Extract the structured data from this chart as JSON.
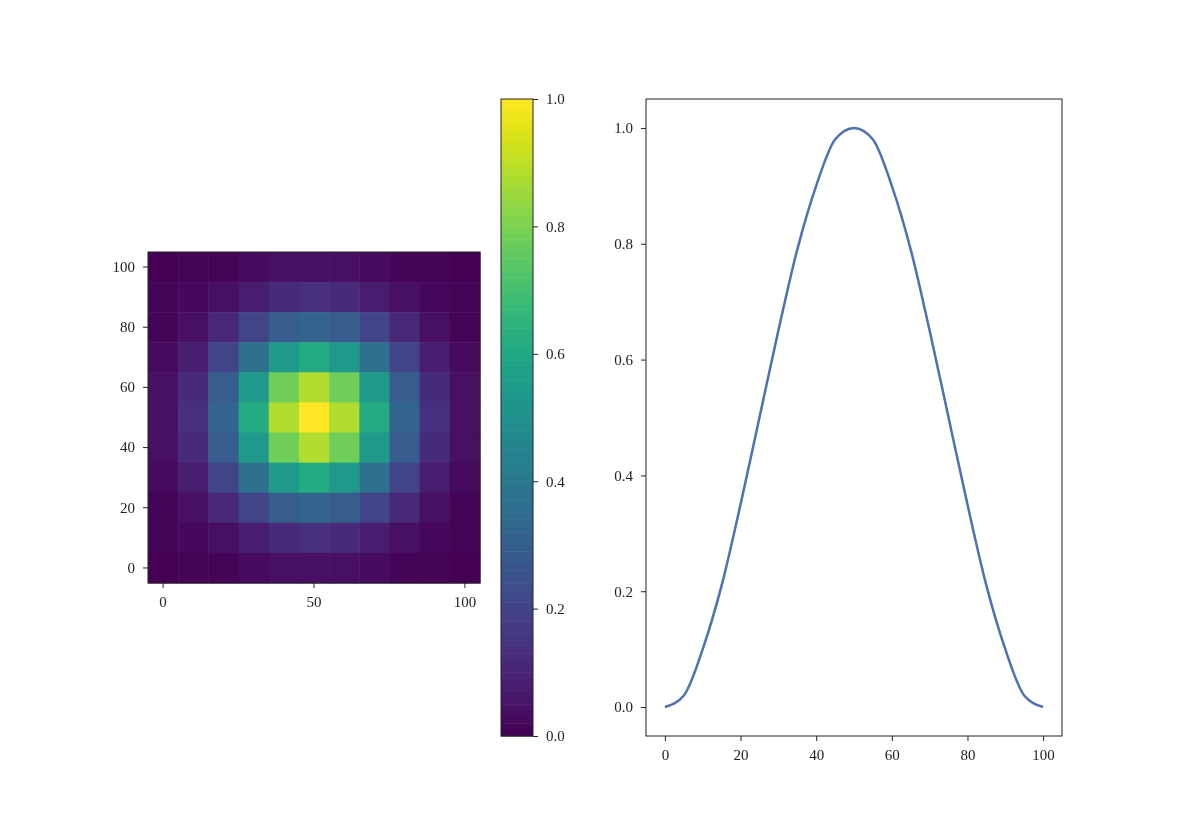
{
  "chart_data": [
    {
      "type": "heatmap",
      "categories": [
        "0",
        null,
        null,
        null,
        null,
        "50",
        null,
        null,
        null,
        null,
        "100"
      ],
      "y_categories": [
        "100",
        null,
        "80",
        null,
        "60",
        null,
        "40",
        null,
        "20",
        null,
        "0"
      ],
      "cells": [
        [
          0.0,
          0.01,
          0.01,
          0.03,
          0.04,
          0.04,
          0.04,
          0.03,
          0.01,
          0.01,
          0.0
        ],
        [
          0.01,
          0.02,
          0.04,
          0.08,
          0.12,
          0.14,
          0.12,
          0.08,
          0.04,
          0.02,
          0.01
        ],
        [
          0.01,
          0.04,
          0.11,
          0.2,
          0.29,
          0.32,
          0.29,
          0.2,
          0.11,
          0.04,
          0.01
        ],
        [
          0.03,
          0.08,
          0.2,
          0.37,
          0.54,
          0.61,
          0.54,
          0.37,
          0.2,
          0.08,
          0.03
        ],
        [
          0.04,
          0.12,
          0.29,
          0.54,
          0.78,
          0.88,
          0.78,
          0.54,
          0.29,
          0.12,
          0.04
        ],
        [
          0.04,
          0.14,
          0.32,
          0.61,
          0.88,
          1.0,
          0.88,
          0.61,
          0.32,
          0.14,
          0.04
        ],
        [
          0.04,
          0.12,
          0.29,
          0.54,
          0.78,
          0.88,
          0.78,
          0.54,
          0.29,
          0.12,
          0.04
        ],
        [
          0.03,
          0.08,
          0.2,
          0.37,
          0.54,
          0.61,
          0.54,
          0.37,
          0.2,
          0.08,
          0.03
        ],
        [
          0.01,
          0.04,
          0.11,
          0.2,
          0.29,
          0.32,
          0.29,
          0.2,
          0.11,
          0.04,
          0.01
        ],
        [
          0.01,
          0.02,
          0.04,
          0.08,
          0.12,
          0.14,
          0.12,
          0.08,
          0.04,
          0.02,
          0.01
        ],
        [
          0.0,
          0.01,
          0.01,
          0.03,
          0.04,
          0.04,
          0.04,
          0.03,
          0.01,
          0.01,
          0.0
        ]
      ],
      "clim": [
        0,
        1
      ],
      "cticks": [
        {
          "value": 0,
          "label": "0.0"
        },
        {
          "value": 0.2,
          "label": "0.2"
        },
        {
          "value": 0.4,
          "label": "0.4"
        },
        {
          "value": 0.6,
          "label": "0.6"
        },
        {
          "value": 0.8,
          "label": "0.8"
        },
        {
          "value": 1,
          "label": "1.0"
        }
      ]
    },
    {
      "type": "line",
      "x": [
        0,
        5,
        10,
        15,
        20,
        25,
        30,
        35,
        40,
        45,
        50,
        55,
        60,
        65,
        70,
        75,
        80,
        85,
        90,
        95,
        100
      ],
      "series": [
        {
          "color": "#4c72b0",
          "values": [
            0,
            0.02,
            0.1,
            0.21,
            0.35,
            0.5,
            0.65,
            0.79,
            0.9,
            0.98,
            1.0,
            0.98,
            0.9,
            0.79,
            0.65,
            0.5,
            0.35,
            0.21,
            0.1,
            0.02,
            0
          ]
        }
      ],
      "xlim": [
        -5,
        105
      ],
      "xticks": [
        0,
        20,
        40,
        60,
        80,
        100
      ],
      "ylim": [
        -0.05,
        1.05
      ],
      "yticks": [
        {
          "value": 0,
          "label": "0.0"
        },
        {
          "value": 0.2,
          "label": "0.2"
        },
        {
          "value": 0.4,
          "label": "0.4"
        },
        {
          "value": 0.6,
          "label": "0.6"
        },
        {
          "value": 0.8,
          "label": "0.8"
        },
        {
          "value": 1,
          "label": "1.0"
        }
      ]
    }
  ]
}
